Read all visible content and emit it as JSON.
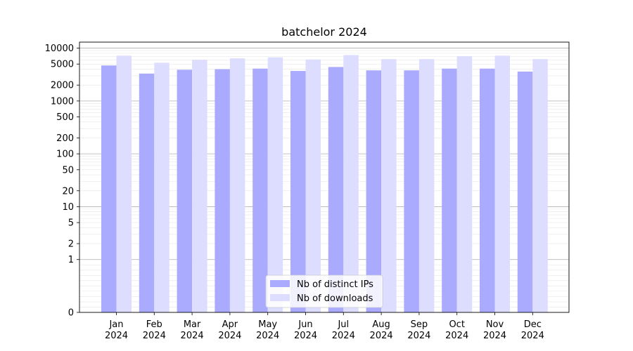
{
  "chart_data": {
    "type": "bar",
    "title": "batchelor 2024",
    "xlabel": "",
    "ylabel": "",
    "y_scale": "symlog",
    "ylim": [
      0,
      13000
    ],
    "y_ticks": [
      0,
      1,
      2,
      5,
      10,
      20,
      50,
      100,
      200,
      500,
      1000,
      2000,
      5000,
      10000
    ],
    "categories": [
      "Jan\n2024",
      "Feb\n2024",
      "Mar\n2024",
      "Apr\n2024",
      "May\n2024",
      "Jun\n2024",
      "Jul\n2024",
      "Aug\n2024",
      "Sep\n2024",
      "Oct\n2024",
      "Nov\n2024",
      "Dec\n2024"
    ],
    "series": [
      {
        "name": "Nb of distinct IPs",
        "color": "#aaaaff",
        "values": [
          4700,
          3300,
          3900,
          4000,
          4100,
          3700,
          4400,
          3800,
          3800,
          4100,
          4100,
          3600
        ]
      },
      {
        "name": "Nb of downloads",
        "color": "#ddddff",
        "values": [
          7200,
          5300,
          6000,
          6400,
          6700,
          6100,
          7400,
          6200,
          6200,
          7000,
          7200,
          6200
        ]
      }
    ],
    "grid": true,
    "legend_position": "bottom-center"
  }
}
